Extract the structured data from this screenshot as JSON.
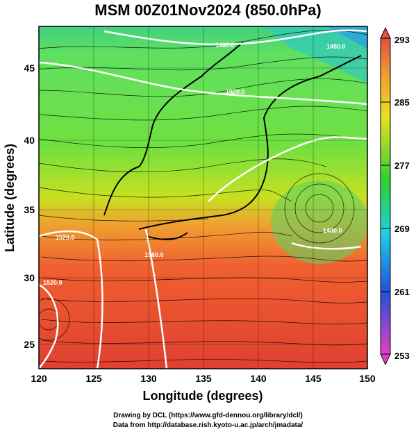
{
  "title": "MSM 00Z01Nov2024 (850.0hPa)",
  "axes": {
    "xlabel": "Longitude (degrees)",
    "ylabel": "Latitude (degrees)",
    "x_ticks": [
      "120",
      "125",
      "130",
      "135",
      "140",
      "145",
      "150"
    ],
    "y_ticks": [
      "25",
      "30",
      "35",
      "40",
      "45"
    ],
    "x_range": [
      120,
      150
    ],
    "y_range": [
      22.5,
      47.5
    ]
  },
  "colorbar": {
    "ticks": [
      "293",
      "285",
      "277",
      "269",
      "261",
      "253"
    ],
    "range": [
      253,
      293
    ],
    "colors": [
      "#e040c0",
      "#2050e0",
      "#20d0e0",
      "#30d030",
      "#e8e020",
      "#e05030"
    ]
  },
  "contours": {
    "labels": [
      "1480.0",
      "1520.0",
      "1520.0",
      "1560.0",
      "1480.0",
      "1520.0",
      "1480.0"
    ]
  },
  "credits": {
    "line1": "Drawing by DCL (https://www.gfd-dennou.org/library/dcl/)",
    "line2": "Data from http://database.rish.kyoto-u.ac.jp/arch/jmadata/"
  }
}
